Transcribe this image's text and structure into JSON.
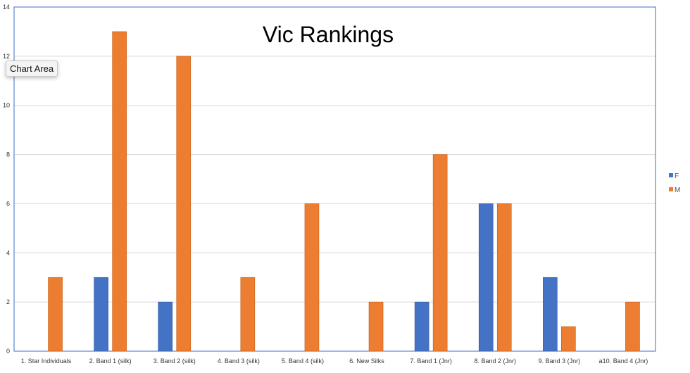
{
  "tooltip": "Chart Area",
  "chart_data": {
    "type": "bar",
    "title": "Vic Rankings",
    "xlabel": "",
    "ylabel": "",
    "ylim": [
      0,
      14
    ],
    "yticks": [
      0,
      2,
      4,
      6,
      8,
      10,
      12,
      14
    ],
    "grid": true,
    "legend_position": "right",
    "categories": [
      "1. Star Individuals",
      "2. Band 1 (silk)",
      "3. Band 2 (silk)",
      "4. Band 3 (silk)",
      "5. Band 4 (silk)",
      "6. New Silks",
      "7. Band 1 (Jnr)",
      "8. Band 2 (Jnr)",
      "9. Band 3 (Jnr)",
      "a10. Band 4 (Jnr)"
    ],
    "series": [
      {
        "name": "F",
        "color": "#4472C4",
        "values": [
          0,
          3,
          2,
          0,
          0,
          0,
          2,
          6,
          3,
          0
        ]
      },
      {
        "name": "M",
        "color": "#ED7D31",
        "values": [
          3,
          13,
          12,
          3,
          6,
          2,
          8,
          6,
          1,
          2
        ]
      }
    ]
  }
}
